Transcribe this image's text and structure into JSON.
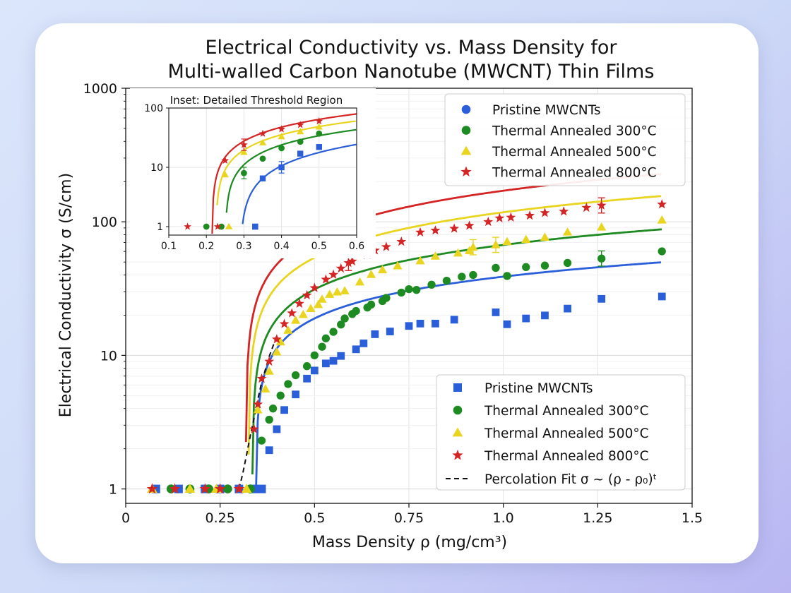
{
  "chart_data": {
    "type": "scatter",
    "title": [
      "Electrical Conductivity vs. Mass Density for",
      "Multi-walled Carbon Nanotube (MWCNT) Thin Films"
    ],
    "xlabel": "Mass Density ρ (mg/cm³)",
    "ylabel": "Electrical Conductivity σ (S/cm)",
    "xlim": [
      0,
      1.5
    ],
    "ylim": [
      0.78,
      1000
    ],
    "yscale": "log",
    "grid": true,
    "xticks": [
      {
        "v": 0,
        "label": "0"
      },
      {
        "v": 0.25,
        "label": "0.25"
      },
      {
        "v": 0.5,
        "label": "0.5"
      },
      {
        "v": 0.75,
        "label": "0.75"
      },
      {
        "v": 1.0,
        "label": "1.0"
      },
      {
        "v": 1.25,
        "label": "1.25"
      },
      {
        "v": 1.5,
        "label": "1.5"
      }
    ],
    "yticks": [
      {
        "v": 1,
        "label": "1"
      },
      {
        "v": 10,
        "label": "10"
      },
      {
        "v": 100,
        "label": "100"
      },
      {
        "v": 1000,
        "label": "1000"
      }
    ],
    "series": [
      {
        "name": "Pristine MWCNTs",
        "color": "#2b5fd9",
        "marker": "square",
        "below": [
          0.08,
          0.14,
          0.21,
          0.25,
          0.3,
          0.34,
          0.36
        ],
        "fit": {
          "rho0": 0.345,
          "A": 48,
          "t": 0.5
        },
        "points": [
          [
            0.38,
            1.95
          ],
          [
            0.4,
            2.8
          ],
          [
            0.42,
            3.9
          ],
          [
            0.45,
            5.1
          ],
          [
            0.48,
            6.7
          ],
          [
            0.5,
            7.7
          ],
          [
            0.53,
            8.7
          ],
          [
            0.55,
            9.1
          ],
          [
            0.57,
            9.9
          ],
          [
            0.61,
            11.1
          ],
          [
            0.63,
            12.3
          ],
          [
            0.66,
            14.4
          ],
          [
            0.7,
            15.1
          ],
          [
            0.75,
            16.6
          ],
          [
            0.78,
            17.3
          ],
          [
            0.82,
            17.3
          ],
          [
            0.87,
            18.5
          ],
          [
            0.98,
            21.0
          ],
          [
            1.01,
            17.1
          ],
          [
            1.06,
            18.9
          ],
          [
            1.11,
            19.9
          ],
          [
            1.17,
            22.4
          ],
          [
            1.26,
            26.5
          ],
          [
            1.42,
            27.6
          ]
        ]
      },
      {
        "name": "Thermal Annealed 300°C",
        "color": "#1e8a22",
        "marker": "circle",
        "below": [
          0.12,
          0.17,
          0.22,
          0.27,
          0.33
        ],
        "fit": {
          "rho0": 0.335,
          "A": 84,
          "t": 0.55
        },
        "points": [
          [
            0.36,
            2.3
          ],
          [
            0.38,
            3.3
          ],
          [
            0.39,
            4.0
          ],
          [
            0.41,
            5.0
          ],
          [
            0.43,
            6.1
          ],
          [
            0.45,
            7.1
          ],
          [
            0.48,
            8.3
          ],
          [
            0.5,
            10.0
          ],
          [
            0.52,
            11.6
          ],
          [
            0.53,
            13.4
          ],
          [
            0.55,
            15.0
          ],
          [
            0.57,
            17.0
          ],
          [
            0.58,
            18.9
          ],
          [
            0.6,
            20.4
          ],
          [
            0.61,
            21.5
          ],
          [
            0.64,
            22.8
          ],
          [
            0.65,
            24.0
          ],
          [
            0.68,
            25.5
          ],
          [
            0.69,
            26.9
          ],
          [
            0.73,
            29.5
          ],
          [
            0.75,
            31.3
          ],
          [
            0.77,
            30.9
          ],
          [
            0.81,
            33.8
          ],
          [
            0.85,
            36.2
          ],
          [
            0.89,
            38.8
          ],
          [
            0.92,
            40.0
          ],
          [
            0.98,
            45.2
          ],
          [
            1.01,
            39.3
          ],
          [
            1.06,
            45.8
          ],
          [
            1.11,
            47.0
          ],
          [
            1.17,
            49.2
          ],
          [
            1.26,
            53.1
          ],
          [
            1.42,
            60.1
          ]
        ]
      },
      {
        "name": "Thermal Annealed 500°C",
        "color": "#e9d51f",
        "marker": "triangle",
        "below": [
          0.07,
          0.17,
          0.24,
          0.32
        ],
        "fit": {
          "rho0": 0.325,
          "A": 148,
          "t": 0.58
        },
        "points": [
          [
            0.35,
            3.9
          ],
          [
            0.37,
            5.6
          ],
          [
            0.38,
            7.6
          ],
          [
            0.4,
            10.6
          ],
          [
            0.41,
            12.6
          ],
          [
            0.43,
            15.4
          ],
          [
            0.45,
            18.3
          ],
          [
            0.47,
            20.2
          ],
          [
            0.49,
            22.4
          ],
          [
            0.51,
            24.0
          ],
          [
            0.52,
            26.3
          ],
          [
            0.54,
            28.6
          ],
          [
            0.56,
            29.8
          ],
          [
            0.58,
            30.4
          ],
          [
            0.62,
            35.4
          ],
          [
            0.65,
            40.3
          ],
          [
            0.68,
            43.7
          ],
          [
            0.72,
            46.8
          ],
          [
            0.78,
            51.0
          ],
          [
            0.82,
            55.3
          ],
          [
            0.88,
            58.3
          ],
          [
            0.91,
            60.7
          ],
          [
            0.92,
            64.5
          ],
          [
            0.98,
            67.2
          ],
          [
            1.01,
            71.0
          ],
          [
            1.06,
            73.7
          ],
          [
            1.11,
            76.6
          ],
          [
            1.17,
            83.7
          ],
          [
            1.26,
            91.2
          ],
          [
            1.42,
            103.0
          ]
        ]
      },
      {
        "name": "Thermal Annealed 800°C",
        "color": "#d42424",
        "marker": "star",
        "below": [
          0.07,
          0.13,
          0.21,
          0.25,
          0.3
        ],
        "fit": {
          "rho0": 0.318,
          "A": 215,
          "t": 0.6
        },
        "points": [
          [
            0.34,
            2.8
          ],
          [
            0.35,
            4.3
          ],
          [
            0.36,
            6.7
          ],
          [
            0.38,
            9.0
          ],
          [
            0.4,
            13.2
          ],
          [
            0.42,
            17.2
          ],
          [
            0.44,
            20.7
          ],
          [
            0.46,
            24.4
          ],
          [
            0.48,
            28.2
          ],
          [
            0.5,
            32.0
          ],
          [
            0.53,
            37.0
          ],
          [
            0.55,
            40.2
          ],
          [
            0.57,
            44.8
          ],
          [
            0.59,
            49.2
          ],
          [
            0.6,
            50.6
          ],
          [
            0.64,
            56.6
          ],
          [
            0.66,
            61.1
          ],
          [
            0.69,
            64.9
          ],
          [
            0.73,
            71.0
          ],
          [
            0.78,
            83.4
          ],
          [
            0.82,
            86.2
          ],
          [
            0.87,
            89.0
          ],
          [
            0.91,
            93.6
          ],
          [
            0.96,
            99.9
          ],
          [
            0.99,
            106.4
          ],
          [
            1.02,
            107.8
          ],
          [
            1.07,
            111.3
          ],
          [
            1.11,
            116.6
          ],
          [
            1.16,
            119.5
          ],
          [
            1.22,
            127.6
          ],
          [
            1.26,
            132.6
          ],
          [
            1.42,
            135.2
          ]
        ]
      }
    ],
    "legend_upper": {
      "position": "top-right",
      "entries": [
        "Pristine MWCNTs",
        "Thermal Annealed 300°C",
        "Thermal Annealed 500°C",
        "Thermal Annealed 800°C"
      ]
    },
    "legend_lower": {
      "position": "lower-right",
      "entries": [
        "Pristine MWCNTs",
        "Thermal Annealed 300°C",
        "Thermal Annealed 500°C",
        "Thermal Annealed 800°C"
      ],
      "fit_label": "Percolation Fit σ ~ (ρ - ρ₀)ᵗ"
    },
    "percolation_fit": {
      "style": "dashed",
      "color": "#111111",
      "x": [
        0.3,
        0.31,
        0.32,
        0.33,
        0.34,
        0.35,
        0.36,
        0.38,
        0.4
      ],
      "y": [
        1.0,
        1.3,
        1.8,
        2.5,
        3.4,
        4.7,
        6.3,
        9.8,
        14.0
      ]
    },
    "inset": {
      "title": "Inset: Detailed Threshold Region",
      "xlim": [
        0.1,
        0.6
      ],
      "ylim": [
        0.72,
        100
      ],
      "yscale": "log",
      "xticks": [
        {
          "v": 0.1,
          "label": "0.1"
        },
        {
          "v": 0.2,
          "label": "0.2"
        },
        {
          "v": 0.3,
          "label": "0.3"
        },
        {
          "v": 0.4,
          "label": "0.4"
        },
        {
          "v": 0.5,
          "label": "0.5"
        },
        {
          "v": 0.6,
          "label": "0.6"
        }
      ],
      "yticks": [
        {
          "v": 1,
          "label": "1"
        },
        {
          "v": 10,
          "label": "10"
        },
        {
          "v": 100,
          "label": "100"
        }
      ],
      "series": [
        {
          "name": "Pristine MWCNTs",
          "color": "#2b5fd9",
          "marker": "square",
          "fit": {
            "rho0": 0.29,
            "A": 62,
            "t": 0.8
          },
          "points": [
            [
              0.33,
              1
            ],
            [
              0.35,
              6.5
            ],
            [
              0.4,
              10
            ],
            [
              0.45,
              17
            ],
            [
              0.5,
              22
            ]
          ],
          "below": [
            0.33
          ]
        },
        {
          "name": "Thermal Annealed 300°C",
          "color": "#1e8a22",
          "marker": "circle",
          "fit": {
            "rho0": 0.25,
            "A": 90,
            "t": 0.7
          },
          "points": [
            [
              0.3,
              8
            ],
            [
              0.35,
              14
            ],
            [
              0.4,
              21
            ],
            [
              0.45,
              27
            ],
            [
              0.5,
              37
            ]
          ],
          "below": [
            0.2,
            0.24
          ]
        },
        {
          "name": "Thermal Annealed 500°C",
          "color": "#e9d51f",
          "marker": "triangle",
          "fit": {
            "rho0": 0.225,
            "A": 120,
            "t": 0.7
          },
          "points": [
            [
              0.25,
              7.5
            ],
            [
              0.3,
              18
            ],
            [
              0.35,
              26
            ],
            [
              0.4,
              33
            ],
            [
              0.45,
              40
            ],
            [
              0.5,
              48
            ]
          ],
          "below": [
            0.26
          ]
        },
        {
          "name": "Thermal Annealed 800°C",
          "color": "#d42424",
          "marker": "star",
          "fit": {
            "rho0": 0.215,
            "A": 155,
            "t": 0.7
          },
          "points": [
            [
              0.25,
              13
            ],
            [
              0.3,
              24
            ],
            [
              0.35,
              37
            ],
            [
              0.4,
              44
            ],
            [
              0.45,
              52
            ],
            [
              0.5,
              60
            ]
          ],
          "below": [
            0.15,
            0.23
          ]
        }
      ]
    }
  }
}
